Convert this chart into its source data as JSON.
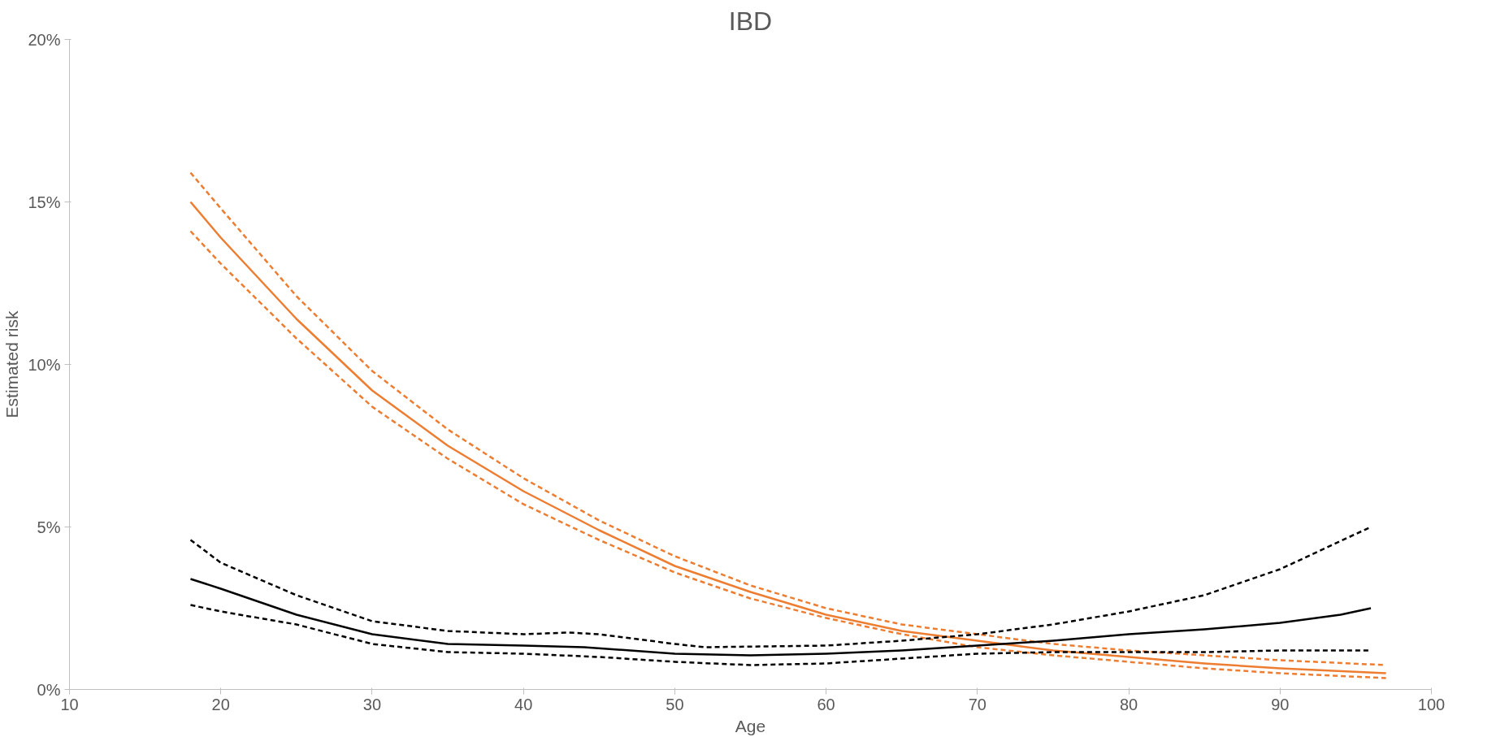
{
  "chart_data": {
    "type": "line",
    "title": "IBD",
    "xlabel": "Age",
    "ylabel": "Estimated risk",
    "xlim": [
      10,
      100
    ],
    "xticks": [
      10,
      20,
      30,
      40,
      50,
      60,
      70,
      80,
      90,
      100
    ],
    "ylim": [
      0,
      20
    ],
    "yticks": [
      {
        "value": 0,
        "label": "0%"
      },
      {
        "value": 5,
        "label": "5%"
      },
      {
        "value": 10,
        "label": "10%"
      },
      {
        "value": 15,
        "label": "15%"
      },
      {
        "value": 20,
        "label": "20%"
      }
    ],
    "grid": false,
    "marker": "none",
    "series": [
      {
        "color": "#ed7d31",
        "line_style": "solid",
        "x": [
          18,
          20,
          25,
          30,
          35,
          40,
          45,
          50,
          55,
          60,
          65,
          70,
          75,
          80,
          85,
          90,
          97
        ],
        "values": [
          15.0,
          13.9,
          11.4,
          9.2,
          7.5,
          6.1,
          4.9,
          3.8,
          3.0,
          2.3,
          1.8,
          1.5,
          1.2,
          1.0,
          0.8,
          0.65,
          0.5
        ]
      },
      {
        "color": "#ed7d31",
        "line_style": "dashed",
        "x": [
          18,
          20,
          25,
          30,
          35,
          40,
          45,
          50,
          55,
          60,
          65,
          70,
          75,
          80,
          85,
          90,
          97
        ],
        "values": [
          15.9,
          14.8,
          12.1,
          9.8,
          8.0,
          6.5,
          5.2,
          4.1,
          3.2,
          2.5,
          2.0,
          1.7,
          1.4,
          1.2,
          1.05,
          0.9,
          0.75
        ]
      },
      {
        "color": "#ed7d31",
        "line_style": "dashed",
        "x": [
          18,
          20,
          25,
          30,
          35,
          40,
          45,
          50,
          55,
          60,
          65,
          70,
          75,
          80,
          85,
          90,
          97
        ],
        "values": [
          14.1,
          13.1,
          10.8,
          8.7,
          7.1,
          5.7,
          4.6,
          3.6,
          2.8,
          2.2,
          1.7,
          1.3,
          1.05,
          0.85,
          0.65,
          0.5,
          0.35
        ]
      },
      {
        "color": "#000000",
        "line_style": "solid",
        "x": [
          18,
          20,
          25,
          30,
          35,
          40,
          44,
          50,
          55,
          60,
          65,
          70,
          75,
          80,
          85,
          90,
          94,
          96
        ],
        "values": [
          3.4,
          3.1,
          2.3,
          1.7,
          1.4,
          1.35,
          1.3,
          1.1,
          1.05,
          1.1,
          1.2,
          1.35,
          1.5,
          1.7,
          1.85,
          2.05,
          2.3,
          2.5
        ]
      },
      {
        "color": "#000000",
        "line_style": "dashed",
        "x": [
          18,
          20,
          25,
          30,
          35,
          40,
          43,
          45,
          50,
          52,
          60,
          65,
          70,
          75,
          80,
          85,
          90,
          96
        ],
        "values": [
          4.6,
          3.9,
          2.9,
          2.1,
          1.8,
          1.7,
          1.75,
          1.7,
          1.4,
          1.3,
          1.35,
          1.5,
          1.7,
          2.0,
          2.4,
          2.9,
          3.7,
          5.0
        ]
      },
      {
        "color": "#000000",
        "line_style": "dashed",
        "x": [
          18,
          20,
          25,
          30,
          35,
          40,
          45,
          50,
          55,
          60,
          65,
          70,
          75,
          80,
          85,
          90,
          96
        ],
        "values": [
          2.6,
          2.4,
          2.0,
          1.4,
          1.15,
          1.1,
          1.0,
          0.85,
          0.75,
          0.8,
          0.95,
          1.1,
          1.15,
          1.15,
          1.15,
          1.2,
          1.2
        ]
      }
    ]
  }
}
